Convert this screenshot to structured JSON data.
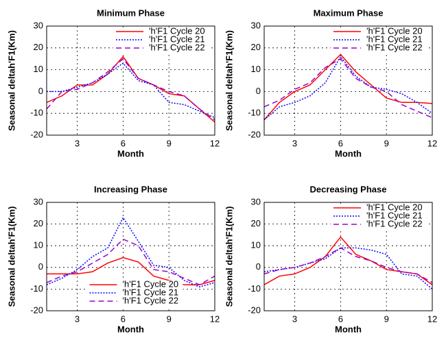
{
  "chart_data": [
    {
      "type": "line",
      "title": "Minimum Phase",
      "xlabel": "Month",
      "ylabel": "Seasonal deltah'F1(Km)",
      "x": [
        1,
        2,
        3,
        4,
        5,
        6,
        7,
        8,
        9,
        10,
        11,
        12
      ],
      "xlim": [
        1,
        12
      ],
      "xticks": [
        3,
        6,
        9,
        12
      ],
      "ylim": [
        -20,
        30
      ],
      "yticks": [
        -20,
        -10,
        0,
        10,
        20,
        30
      ],
      "grid": true,
      "legend": "upper right",
      "series": [
        {
          "name": "'h'F1 Cycle 20",
          "color": "#ff0000",
          "style": "solid",
          "values": [
            -5,
            -2,
            3,
            3,
            8,
            16,
            6,
            3,
            -1,
            -2,
            -8,
            -14
          ]
        },
        {
          "name": "'h'F1 Cycle 21",
          "color": "#0000ff",
          "style": "dotted",
          "values": [
            0,
            0,
            2,
            4,
            8,
            13,
            5,
            3,
            -5,
            -6,
            -9,
            -12
          ]
        },
        {
          "name": "'h'F1 Cycle 22",
          "color": "#9900cc",
          "style": "dashed",
          "values": [
            -8,
            0,
            1,
            4,
            9,
            15,
            6,
            3,
            0,
            -2,
            -8,
            -13
          ]
        }
      ]
    },
    {
      "type": "line",
      "title": "Maximum Phase",
      "xlabel": "Month",
      "ylabel": "Seasonal deltah'F1(Km)",
      "x": [
        1,
        2,
        3,
        4,
        5,
        6,
        7,
        8,
        9,
        10,
        11,
        12
      ],
      "xlim": [
        1,
        12
      ],
      "xticks": [
        3,
        6,
        9,
        12
      ],
      "ylim": [
        -20,
        30
      ],
      "yticks": [
        -20,
        -10,
        0,
        10,
        20,
        30
      ],
      "grid": true,
      "legend": "upper right",
      "series": [
        {
          "name": "'h'F1 Cycle 20",
          "color": "#ff0000",
          "style": "solid",
          "values": [
            -13,
            -5,
            0,
            3,
            10,
            17,
            9,
            3,
            -3,
            -5,
            -5,
            -5.5
          ]
        },
        {
          "name": "'h'F1 Cycle 21",
          "color": "#0000ff",
          "style": "dotted",
          "values": [
            -13,
            -7,
            -5,
            -2,
            4,
            16,
            7,
            2,
            1,
            -1,
            -5,
            -10
          ]
        },
        {
          "name": "'h'F1 Cycle 22",
          "color": "#9900cc",
          "style": "dashed",
          "values": [
            -7,
            -4,
            1,
            4,
            11,
            15,
            6,
            2,
            0,
            -6,
            -9,
            -12
          ]
        }
      ]
    },
    {
      "type": "line",
      "title": "Increasing Phase",
      "xlabel": "Month",
      "ylabel": "Seasonal deltah'F1(Km)",
      "x": [
        1,
        2,
        3,
        4,
        5,
        6,
        7,
        8,
        9,
        10,
        11,
        12
      ],
      "xlim": [
        1,
        12
      ],
      "xticks": [
        3,
        6,
        9,
        12
      ],
      "ylim": [
        -20,
        30
      ],
      "yticks": [
        -20,
        -10,
        0,
        10,
        20,
        30
      ],
      "grid": true,
      "legend": "lower center",
      "series": [
        {
          "name": "'h'F1 Cycle 20",
          "color": "#ff0000",
          "style": "solid",
          "values": [
            -3,
            -3,
            -3,
            -2,
            2,
            4.5,
            2.5,
            -4,
            -6,
            -8,
            -8,
            -6
          ]
        },
        {
          "name": "'h'F1 Cycle 21",
          "color": "#0000ff",
          "style": "dotted",
          "values": [
            -8,
            -5,
            -1,
            5,
            9,
            23,
            12,
            1,
            0,
            -6,
            -9,
            -7
          ]
        },
        {
          "name": "'h'F1 Cycle 22",
          "color": "#9900cc",
          "style": "dashed",
          "values": [
            -7,
            -4,
            -2,
            2,
            6,
            13,
            10,
            -1,
            -2,
            -5,
            -8,
            -4
          ]
        }
      ]
    },
    {
      "type": "line",
      "title": "Decreasing Phase",
      "xlabel": "Month",
      "ylabel": "Seasonal deltah'F1(Km)",
      "x": [
        1,
        2,
        3,
        4,
        5,
        6,
        7,
        8,
        9,
        10,
        11,
        12
      ],
      "xlim": [
        1,
        12
      ],
      "xticks": [
        3,
        6,
        9,
        12
      ],
      "ylim": [
        -20,
        30
      ],
      "yticks": [
        -20,
        -10,
        0,
        10,
        20,
        30
      ],
      "grid": true,
      "legend": "upper right",
      "series": [
        {
          "name": "'h'F1 Cycle 20",
          "color": "#ff0000",
          "style": "solid",
          "values": [
            -8,
            -4,
            -3,
            0,
            5,
            14,
            6,
            3,
            -1,
            -2,
            -3,
            -8
          ]
        },
        {
          "name": "'h'F1 Cycle 21",
          "color": "#0000ff",
          "style": "dotted",
          "values": [
            -2,
            -1,
            0,
            2,
            4,
            9,
            9,
            8,
            6,
            -3,
            -4,
            -10
          ]
        },
        {
          "name": "'h'F1 Cycle 22",
          "color": "#9900cc",
          "style": "dashed",
          "values": [
            -3,
            -1,
            0,
            2,
            5,
            9,
            5,
            3,
            0,
            -2,
            -3,
            -7
          ]
        }
      ]
    }
  ]
}
